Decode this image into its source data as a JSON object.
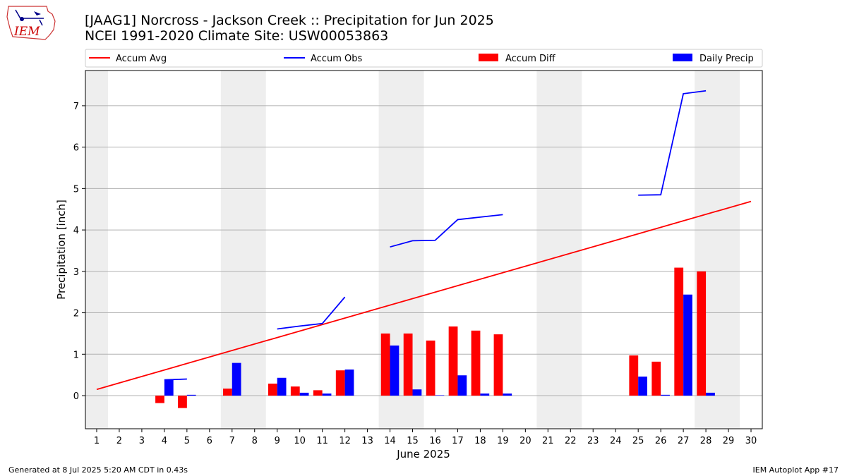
{
  "page": {
    "title_line1": "[JAAG1] Norcross - Jackson Creek :: Precipitation for Jun 2025",
    "title_line2": "NCEI 1991-2020 Climate Site: USW00053863",
    "footer_left": "Generated at 8 Jul 2025 5:20 AM CDT in 0.43s",
    "footer_right": "IEM Autoplot App #17",
    "logo_text": "IEM"
  },
  "chart_data": {
    "type": "bar",
    "xlabel": "June 2025",
    "ylabel": "Precipitation [inch]",
    "x": [
      1,
      2,
      3,
      4,
      5,
      6,
      7,
      8,
      9,
      10,
      11,
      12,
      13,
      14,
      15,
      16,
      17,
      18,
      19,
      20,
      21,
      22,
      23,
      24,
      25,
      26,
      27,
      28,
      29,
      30
    ],
    "xlim": [
      0.5,
      30.5
    ],
    "ylim": [
      -0.8,
      7.85
    ],
    "yticks": [
      0,
      1,
      2,
      3,
      4,
      5,
      6,
      7
    ],
    "grid": "horizontal",
    "legend_position": "top",
    "weekend_shading": [
      [
        0.5,
        1.5
      ],
      [
        6.5,
        8.5
      ],
      [
        13.5,
        15.5
      ],
      [
        20.5,
        22.5
      ],
      [
        27.5,
        29.5
      ]
    ],
    "series": [
      {
        "name": "Accum Avg",
        "kind": "line",
        "color": "#ff0000",
        "x": [
          1,
          30
        ],
        "values": [
          0.15,
          4.69
        ]
      },
      {
        "name": "Accum Obs",
        "kind": "line",
        "color": "#0000ff",
        "segments": [
          {
            "x": [
              4,
              5
            ],
            "values": [
              0.38,
              0.4
            ]
          },
          {
            "x": [
              9,
              10,
              11,
              12
            ],
            "values": [
              1.61,
              1.68,
              1.74,
              2.38
            ]
          },
          {
            "x": [
              14,
              15,
              16,
              17,
              18,
              19
            ],
            "values": [
              3.59,
              3.74,
              3.75,
              4.25,
              4.31,
              4.37
            ]
          },
          {
            "x": [
              25,
              26,
              27,
              28
            ],
            "values": [
              4.84,
              4.85,
              7.29,
              7.36
            ]
          }
        ]
      },
      {
        "name": "Accum Diff",
        "kind": "bar",
        "color": "#ff0000",
        "x": [
          4,
          5,
          7,
          9,
          10,
          11,
          12,
          14,
          15,
          16,
          17,
          18,
          19,
          25,
          26,
          27,
          28
        ],
        "values": [
          -0.18,
          -0.3,
          0.17,
          0.29,
          0.22,
          0.13,
          0.61,
          1.5,
          1.5,
          1.33,
          1.67,
          1.57,
          1.48,
          0.97,
          0.82,
          3.09,
          3.0
        ]
      },
      {
        "name": "Daily Precip",
        "kind": "bar",
        "color": "#0000ff",
        "x": [
          4,
          5,
          7,
          9,
          10,
          11,
          12,
          14,
          15,
          16,
          17,
          18,
          19,
          25,
          26,
          27,
          28
        ],
        "values": [
          0.38,
          0.02,
          0.79,
          0.43,
          0.07,
          0.05,
          0.63,
          1.21,
          0.15,
          0.01,
          0.49,
          0.05,
          0.05,
          0.46,
          0.02,
          2.44,
          0.07
        ]
      }
    ]
  }
}
